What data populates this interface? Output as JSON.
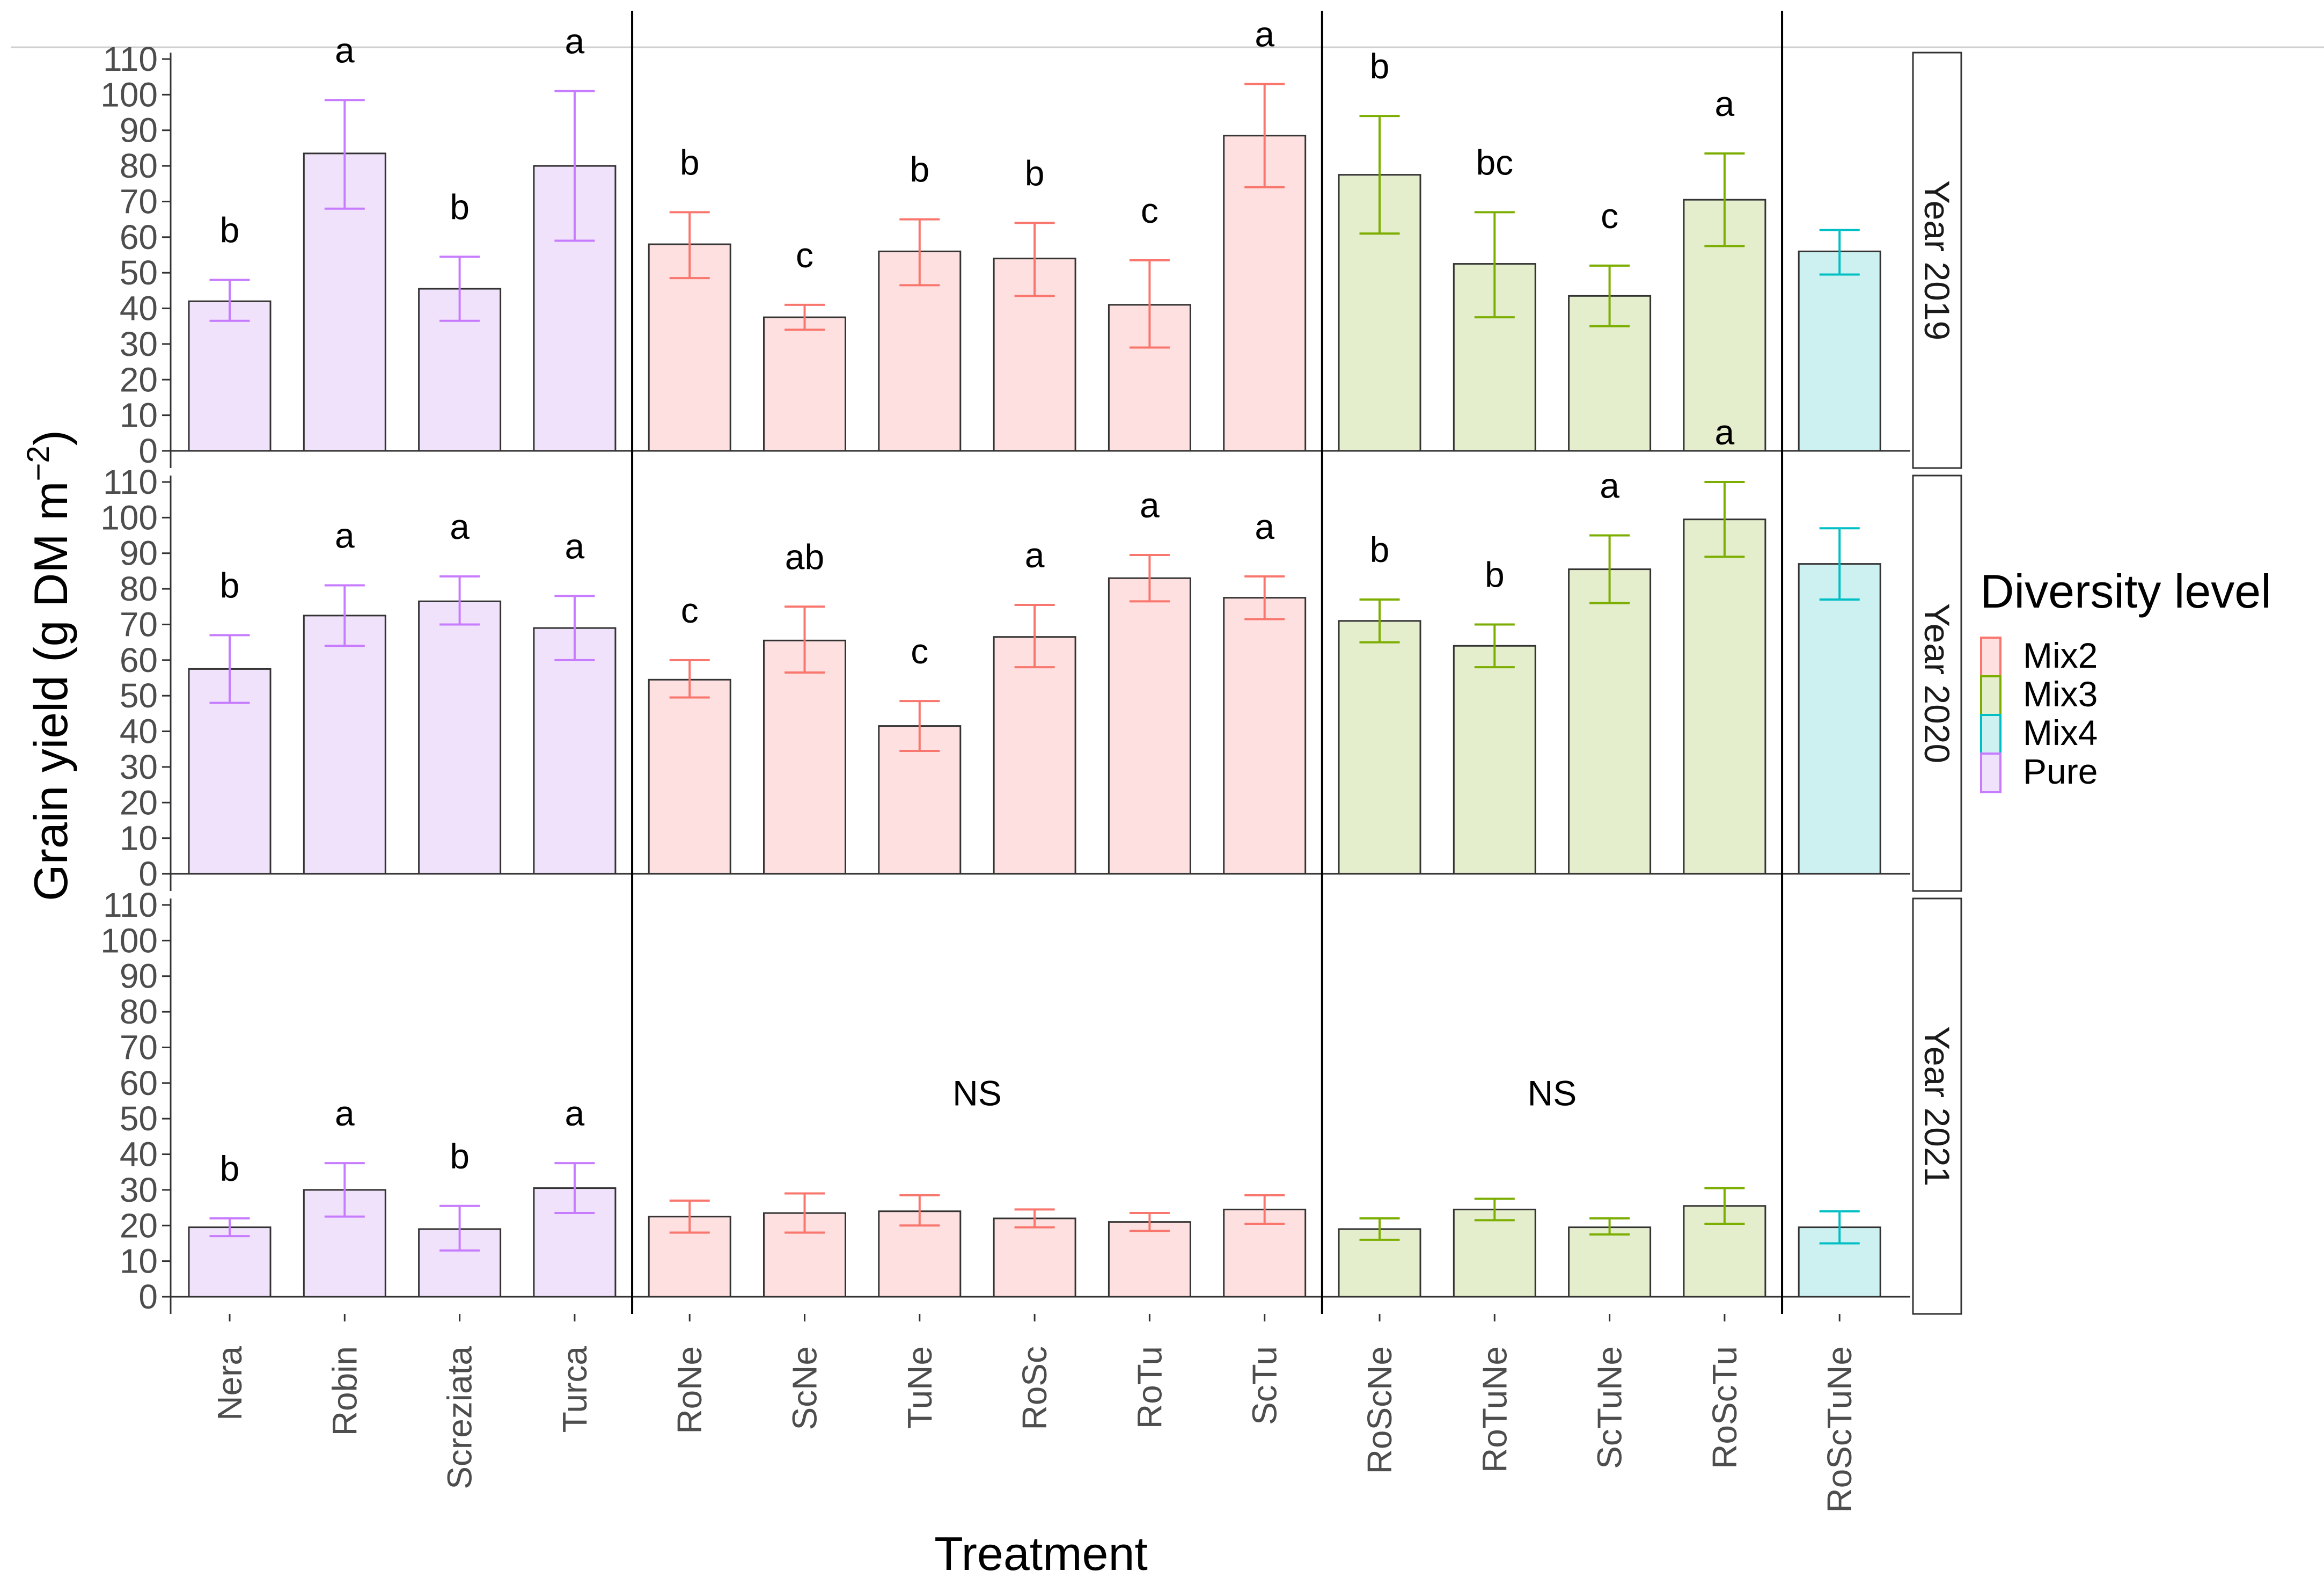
{
  "chart_data": {
    "type": "bar",
    "xlabel": "Treatment",
    "ylabel": "Grain yield (g DM m",
    "ylabel_superscript": "−2",
    "ylabel_close": ")",
    "ylim": [
      0,
      115
    ],
    "yticks": [
      "0",
      "10",
      "20",
      "30",
      "40",
      "50",
      "60",
      "70",
      "80",
      "90",
      "100",
      "110"
    ],
    "categories": [
      "Nera",
      "Robin",
      "Screziata",
      "Turca",
      "RoNe",
      "ScNe",
      "TuNe",
      "RoSc",
      "RoTu",
      "ScTu",
      "RoScNe",
      "RoTuNe",
      "ScTuNe",
      "RoScTu",
      "RoScTuNe"
    ],
    "group_of_category": [
      "Pure",
      "Pure",
      "Pure",
      "Pure",
      "Mix2",
      "Mix2",
      "Mix2",
      "Mix2",
      "Mix2",
      "Mix2",
      "Mix3",
      "Mix3",
      "Mix3",
      "Mix3",
      "Mix4"
    ],
    "legend": {
      "title": "Diversity level",
      "placement": "right",
      "entries": [
        {
          "label": "Mix2",
          "fill": "#fde0df",
          "line": "#f8766d"
        },
        {
          "label": "Mix3",
          "fill": "#e4edcc",
          "line": "#7cae00"
        },
        {
          "label": "Mix4",
          "fill": "#cdf0f1",
          "line": "#00bfc4"
        },
        {
          "label": "Pure",
          "fill": "#f1e2fc",
          "line": "#c77cff"
        }
      ]
    },
    "panels": [
      {
        "strip": "Year 2019",
        "means": [
          42,
          83.5,
          45.5,
          80,
          58,
          37.5,
          56,
          54,
          41,
          88.5,
          77.5,
          52.5,
          43.5,
          70.5,
          56
        ],
        "lower": [
          36.5,
          68,
          36.5,
          59,
          48.5,
          34,
          46.5,
          43.5,
          29,
          74,
          61,
          37.5,
          35,
          57.5,
          49.5
        ],
        "upper": [
          48,
          98.5,
          54.5,
          101,
          67,
          41,
          65,
          64,
          53.5,
          103,
          94,
          67,
          52,
          83.5,
          62
        ],
        "letters": [
          "b",
          "a",
          "b",
          "a",
          "b",
          "c",
          "b",
          "b",
          "c",
          "a",
          "b",
          "bc",
          "c",
          "a",
          ""
        ],
        "group_labels": []
      },
      {
        "strip": "Year 2020",
        "means": [
          57.5,
          72.5,
          76.5,
          69,
          54.5,
          65.5,
          41.5,
          66.5,
          83,
          77.5,
          71,
          64,
          85.5,
          99.5,
          87
        ],
        "lower": [
          48,
          64,
          70,
          60,
          49.5,
          56.5,
          34.5,
          58,
          76.5,
          71.5,
          65,
          58,
          76,
          89,
          77
        ],
        "upper": [
          67,
          81,
          83.5,
          78,
          60,
          75,
          48.5,
          75.5,
          89.5,
          83.5,
          77,
          70,
          95,
          110,
          97
        ],
        "letters": [
          "b",
          "a",
          "a",
          "a",
          "c",
          "ab",
          "c",
          "a",
          "a",
          "a",
          "b",
          "b",
          "a",
          "a",
          ""
        ],
        "group_labels": []
      },
      {
        "strip": "Year 2021",
        "means": [
          19.5,
          30,
          19,
          30.5,
          22.5,
          23.5,
          24,
          22,
          21,
          24.5,
          19,
          24.5,
          19.5,
          25.5,
          19.5
        ],
        "lower": [
          17,
          22.5,
          13,
          23.5,
          18,
          18,
          20,
          19.5,
          18.5,
          20.5,
          16,
          21.5,
          17.5,
          20.5,
          15
        ],
        "upper": [
          22,
          37.5,
          25.5,
          37.5,
          27,
          29,
          28.5,
          24.5,
          23.5,
          28.5,
          22,
          27.5,
          22,
          30.5,
          24
        ],
        "letters": [
          "b",
          "a",
          "b",
          "a",
          "",
          "",
          "",
          "",
          "",
          "",
          "",
          "",
          "",
          "",
          ""
        ],
        "group_labels": [
          {
            "text": "NS",
            "center_between": [
              4,
              9
            ],
            "value": 57
          },
          {
            "text": "NS",
            "center_between": [
              10,
              13
            ],
            "value": 57
          }
        ]
      }
    ]
  }
}
